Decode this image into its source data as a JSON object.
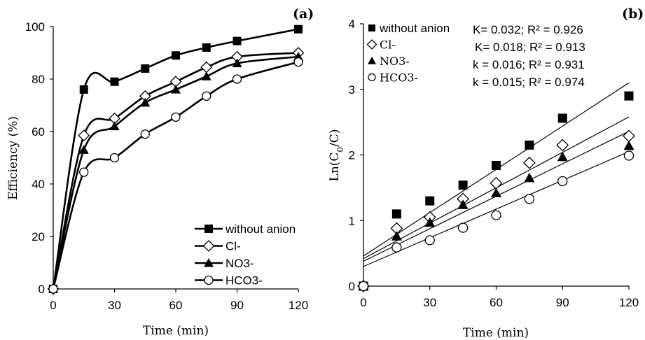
{
  "chart_data": [
    {
      "type": "line",
      "panel_label": "(a)",
      "xlabel": "Time (min)",
      "ylabel": "Efficiency (%)",
      "xlim": [
        0,
        120
      ],
      "ylim": [
        0,
        100
      ],
      "xticks": [
        0,
        30,
        60,
        90,
        120
      ],
      "yticks": [
        0,
        20,
        40,
        60,
        80,
        100
      ],
      "legend_position": "bottom-right",
      "series": [
        {
          "name": "without anion",
          "marker": "filled-square",
          "x": [
            0,
            15,
            30,
            45,
            60,
            75,
            90,
            120
          ],
          "y": [
            0,
            76,
            79,
            84,
            89,
            92,
            94.5,
            99
          ]
        },
        {
          "name": "Cl-",
          "marker": "open-diamond",
          "x": [
            0,
            15,
            30,
            45,
            60,
            75,
            90,
            120
          ],
          "y": [
            0,
            58.5,
            65,
            73.5,
            79,
            84.5,
            88.5,
            90
          ]
        },
        {
          "name": "NO3-",
          "marker": "filled-triangle",
          "x": [
            0,
            15,
            30,
            45,
            60,
            75,
            90,
            120
          ],
          "y": [
            0,
            53,
            62,
            71,
            76,
            81,
            86,
            88.5
          ]
        },
        {
          "name": "HCO3-",
          "marker": "open-circle",
          "x": [
            0,
            15,
            30,
            45,
            60,
            75,
            90,
            120
          ],
          "y": [
            0,
            44.5,
            50,
            59,
            65.5,
            73.5,
            80,
            86.5
          ]
        }
      ]
    },
    {
      "type": "scatter",
      "panel_label": "(b)",
      "xlabel": "Time (min)",
      "ylabel": "Ln(C0/C)",
      "ylabel_main": "Ln(C",
      "ylabel_sub": "0",
      "ylabel_tail": "/C)",
      "xlim": [
        0,
        120
      ],
      "ylim": [
        0,
        4
      ],
      "xticks": [
        0,
        30,
        60,
        90,
        120
      ],
      "yticks": [
        0,
        1,
        2,
        3,
        4
      ],
      "legend_position": "top-left",
      "annotations": [
        "K= 0.032; R² = 0.926",
        "K= 0.018; R² = 0.913",
        "k = 0.016; R² = 0.931",
        "k = 0.015; R² = 0.974"
      ],
      "series": [
        {
          "name": "without anion",
          "marker": "filled-square",
          "x": [
            0,
            15,
            30,
            45,
            60,
            75,
            90,
            120
          ],
          "y": [
            0,
            1.1,
            1.3,
            1.54,
            1.84,
            2.15,
            2.56,
            2.9
          ],
          "fit": {
            "intercept": 0.46,
            "end": 3.1
          }
        },
        {
          "name": "Cl-",
          "marker": "open-diamond",
          "x": [
            0,
            15,
            30,
            45,
            60,
            75,
            90,
            120
          ],
          "y": [
            0,
            0.88,
            1.05,
            1.33,
            1.57,
            1.88,
            2.15,
            2.29
          ],
          "fit": {
            "intercept": 0.42,
            "end": 2.58
          }
        },
        {
          "name": "NO3-",
          "marker": "filled-triangle",
          "x": [
            0,
            15,
            30,
            45,
            60,
            75,
            90,
            120
          ],
          "y": [
            0,
            0.76,
            0.97,
            1.24,
            1.42,
            1.65,
            1.97,
            2.14
          ],
          "fit": {
            "intercept": 0.38,
            "end": 2.36
          }
        },
        {
          "name": "HCO3-",
          "marker": "open-circle",
          "x": [
            0,
            15,
            30,
            45,
            60,
            75,
            90,
            120
          ],
          "y": [
            0,
            0.59,
            0.7,
            0.89,
            1.08,
            1.33,
            1.6,
            1.99
          ],
          "fit": {
            "intercept": 0.3,
            "end": 2.05
          }
        }
      ]
    }
  ]
}
